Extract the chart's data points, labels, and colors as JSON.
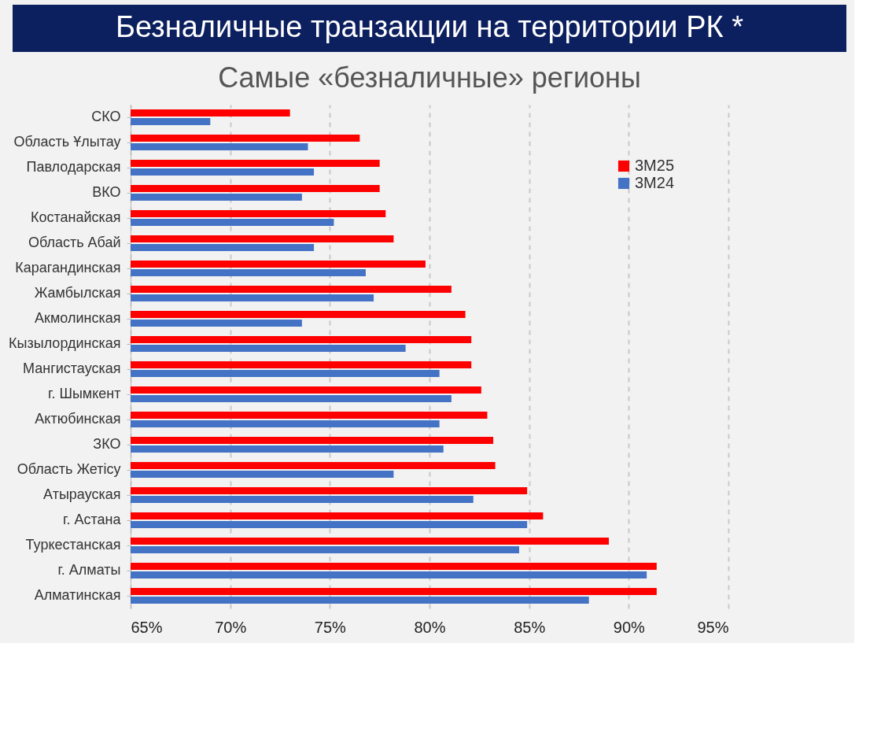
{
  "chart_data": {
    "type": "bar",
    "orientation": "horizontal",
    "title": "Безналичные транзакции на территории РК *",
    "subtitle": "Самые «безналичные» регионы",
    "categories": [
      "СКО",
      "Область Ұлытау",
      "Павлодарская",
      "ВКО",
      "Костанайская",
      "Область Абай",
      "Карагандинская",
      "Жамбылская",
      "Акмолинская",
      "Кызылординская",
      "Мангистауская",
      "г. Шымкент",
      "Актюбинская",
      "ЗКО",
      "Область Жетісу",
      "Атырауская",
      "г. Астана",
      "Туркестанская",
      "г. Алматы",
      "Алматинская"
    ],
    "series": [
      {
        "name": "3M25",
        "color": "#ff0000",
        "values": [
          73.0,
          76.5,
          77.5,
          77.5,
          77.8,
          78.2,
          79.8,
          81.1,
          81.8,
          82.1,
          82.1,
          82.6,
          82.9,
          83.2,
          83.3,
          84.9,
          85.7,
          89.0,
          91.4,
          91.4
        ]
      },
      {
        "name": "3M24",
        "color": "#4472c4",
        "values": [
          69.0,
          73.9,
          74.2,
          73.6,
          75.2,
          74.2,
          76.8,
          77.2,
          73.6,
          78.8,
          80.5,
          81.1,
          80.5,
          80.7,
          78.2,
          82.2,
          84.9,
          84.5,
          90.9,
          88.0
        ]
      }
    ],
    "xlim": [
      65,
      95
    ],
    "xticks": [
      {
        "value": 65,
        "label": "65%"
      },
      {
        "value": 70,
        "label": "70%"
      },
      {
        "value": 75,
        "label": "75%"
      },
      {
        "value": 80,
        "label": "80%"
      },
      {
        "value": 85,
        "label": "85%"
      },
      {
        "value": 90,
        "label": "90%"
      },
      {
        "value": 95,
        "label": "95%"
      }
    ],
    "grid": "x",
    "legend": "top right"
  }
}
